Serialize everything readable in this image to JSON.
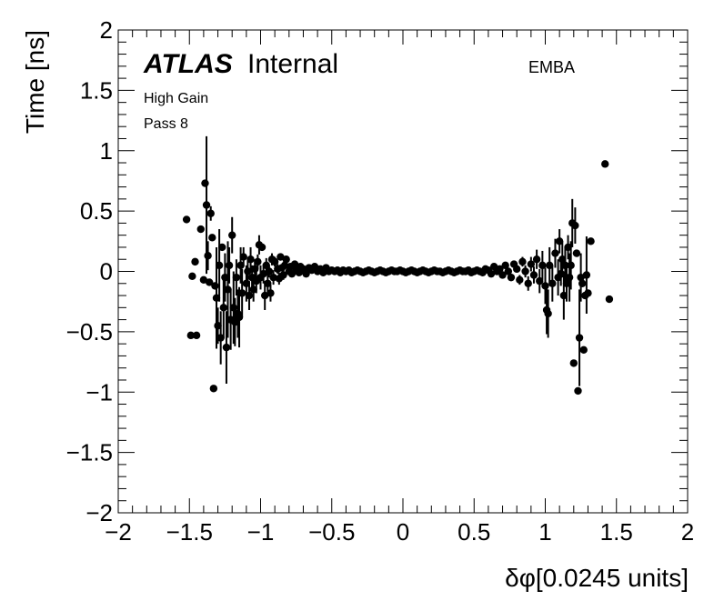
{
  "chart_data": {
    "type": "scatter",
    "xlabel": "δφ[0.0245 units]",
    "ylabel": "Time [ns]",
    "xlim": [
      -2,
      2
    ],
    "ylim": [
      -2,
      2
    ],
    "x_ticks": [
      -2,
      -1.5,
      -1,
      -0.5,
      0,
      0.5,
      1,
      1.5,
      2
    ],
    "y_ticks": [
      -2,
      -1.5,
      -1,
      -0.5,
      0,
      0.5,
      1,
      1.5,
      2
    ],
    "x_tick_labels": [
      "−2",
      "−1.5",
      "−1",
      "−0.5",
      "0",
      "0.5",
      "1",
      "1.5",
      "2"
    ],
    "y_tick_labels": [
      "−2",
      "−1.5",
      "−1",
      "−0.5",
      "0",
      "0.5",
      "1",
      "1.5",
      "2"
    ],
    "grid": false,
    "marker_color": "#000000",
    "annotations": {
      "experiment": "ATLAS",
      "status": "Internal",
      "gain": "High Gain",
      "pass": "Pass 8",
      "region": "EMBA"
    },
    "points": [
      {
        "x": -1.52,
        "y": 0.43,
        "err": 0.0
      },
      {
        "x": -1.49,
        "y": -0.53,
        "err": 0.0
      },
      {
        "x": -1.48,
        "y": -0.04,
        "err": 0.0
      },
      {
        "x": -1.46,
        "y": 0.08,
        "err": 0.0
      },
      {
        "x": -1.45,
        "y": -0.53,
        "err": 0.0
      },
      {
        "x": -1.42,
        "y": 0.35,
        "err": 0.0
      },
      {
        "x": -1.4,
        "y": -0.07,
        "err": 0.0
      },
      {
        "x": -1.39,
        "y": 0.73,
        "err": 0.0
      },
      {
        "x": -1.38,
        "y": 0.55,
        "err": 0.57
      },
      {
        "x": -1.37,
        "y": 0.13,
        "err": 0.12
      },
      {
        "x": -1.36,
        "y": -0.09,
        "err": 0.0
      },
      {
        "x": -1.35,
        "y": 0.48,
        "err": 0.06
      },
      {
        "x": -1.34,
        "y": 0.28,
        "err": 0.0
      },
      {
        "x": -1.33,
        "y": -0.97,
        "err": 0.0
      },
      {
        "x": -1.32,
        "y": -0.12,
        "err": 0.0
      },
      {
        "x": -1.31,
        "y": -0.22,
        "err": 0.42
      },
      {
        "x": -1.3,
        "y": -0.45,
        "err": 0.15
      },
      {
        "x": -1.29,
        "y": 0.05,
        "err": 0.3
      },
      {
        "x": -1.28,
        "y": -0.55,
        "err": 0.22
      },
      {
        "x": -1.27,
        "y": 0.2,
        "err": 0.0
      },
      {
        "x": -1.26,
        "y": -0.3,
        "err": 0.25
      },
      {
        "x": -1.25,
        "y": -0.05,
        "err": 0.2
      },
      {
        "x": -1.24,
        "y": -0.63,
        "err": 0.3
      },
      {
        "x": -1.23,
        "y": -0.15,
        "err": 0.4
      },
      {
        "x": -1.22,
        "y": 0.05,
        "err": 0.15
      },
      {
        "x": -1.21,
        "y": -0.4,
        "err": 0.25
      },
      {
        "x": -1.2,
        "y": 0.3,
        "err": 0.15
      },
      {
        "x": -1.19,
        "y": -0.3,
        "err": 0.3
      },
      {
        "x": -1.18,
        "y": -0.42,
        "err": 0.2
      },
      {
        "x": -1.17,
        "y": -0.05,
        "err": 0.15
      },
      {
        "x": -1.16,
        "y": -0.35,
        "err": 0.2
      },
      {
        "x": -1.15,
        "y": -0.38,
        "err": 0.25
      },
      {
        "x": -1.14,
        "y": 0.05,
        "err": 0.15
      },
      {
        "x": -1.13,
        "y": -0.18,
        "err": 0.2
      },
      {
        "x": -1.12,
        "y": 0.12,
        "err": 0.08
      },
      {
        "x": -1.1,
        "y": -0.1,
        "err": 0.15
      },
      {
        "x": -1.09,
        "y": 0.0,
        "err": 0.1
      },
      {
        "x": -1.08,
        "y": -0.2,
        "err": 0.12
      },
      {
        "x": -1.07,
        "y": 0.1,
        "err": 0.1
      },
      {
        "x": -1.06,
        "y": -0.05,
        "err": 0.1
      },
      {
        "x": -1.05,
        "y": -0.15,
        "err": 0.1
      },
      {
        "x": -1.04,
        "y": 0.02,
        "err": 0.08
      },
      {
        "x": -1.03,
        "y": -0.08,
        "err": 0.1
      },
      {
        "x": -1.02,
        "y": 0.08,
        "err": 0.06
      },
      {
        "x": -1.01,
        "y": 0.22,
        "err": 0.08
      },
      {
        "x": -1.0,
        "y": -0.05,
        "err": 0.1
      },
      {
        "x": -0.99,
        "y": 0.2,
        "err": 0.0
      },
      {
        "x": -0.98,
        "y": -0.02,
        "err": 0.08
      },
      {
        "x": -0.97,
        "y": -0.2,
        "err": 0.12
      },
      {
        "x": -0.96,
        "y": 0.05,
        "err": 0.06
      },
      {
        "x": -0.95,
        "y": -0.1,
        "err": 0.08
      },
      {
        "x": -0.94,
        "y": 0.0,
        "err": 0.05
      },
      {
        "x": -0.93,
        "y": -0.18,
        "err": 0.07
      },
      {
        "x": -0.92,
        "y": 0.1,
        "err": 0.05
      },
      {
        "x": -0.91,
        "y": -0.05,
        "err": 0.06
      },
      {
        "x": -0.9,
        "y": 0.08,
        "err": 0.04
      },
      {
        "x": -0.88,
        "y": 0.02,
        "err": 0.04
      },
      {
        "x": -0.87,
        "y": -0.06,
        "err": 0.05
      },
      {
        "x": -0.86,
        "y": 0.12,
        "err": 0.03
      },
      {
        "x": -0.85,
        "y": 0.03,
        "err": 0.03
      },
      {
        "x": -0.84,
        "y": -0.03,
        "err": 0.04
      },
      {
        "x": -0.83,
        "y": 0.05,
        "err": 0.03
      },
      {
        "x": -0.82,
        "y": 0.1,
        "err": 0.03
      },
      {
        "x": -0.8,
        "y": 0.0,
        "err": 0.03
      },
      {
        "x": -0.79,
        "y": 0.04,
        "err": 0.02
      },
      {
        "x": -0.78,
        "y": -0.02,
        "err": 0.02
      },
      {
        "x": -0.76,
        "y": 0.06,
        "err": 0.02
      },
      {
        "x": -0.75,
        "y": 0.02,
        "err": 0.02
      },
      {
        "x": -0.73,
        "y": -0.01,
        "err": 0.02
      },
      {
        "x": -0.72,
        "y": 0.04,
        "err": 0.02
      },
      {
        "x": -0.7,
        "y": 0.02,
        "err": 0.01
      },
      {
        "x": -0.68,
        "y": -0.02,
        "err": 0.01
      },
      {
        "x": -0.66,
        "y": 0.03,
        "err": 0.01
      },
      {
        "x": -0.64,
        "y": 0.01,
        "err": 0.01
      },
      {
        "x": -0.62,
        "y": 0.04,
        "err": 0.01
      },
      {
        "x": -0.6,
        "y": 0.0,
        "err": 0.01
      },
      {
        "x": -0.58,
        "y": 0.02,
        "err": 0.01
      },
      {
        "x": -0.56,
        "y": -0.01,
        "err": 0.01
      },
      {
        "x": -0.54,
        "y": 0.03,
        "err": 0.01
      },
      {
        "x": -0.52,
        "y": 0.0,
        "err": 0.01
      },
      {
        "x": -0.5,
        "y": 0.01,
        "err": 0.01
      },
      {
        "x": -0.48,
        "y": 0.0,
        "err": 0.0
      },
      {
        "x": -0.46,
        "y": 0.01,
        "err": 0.0
      },
      {
        "x": -0.44,
        "y": -0.01,
        "err": 0.0
      },
      {
        "x": -0.42,
        "y": 0.01,
        "err": 0.0
      },
      {
        "x": -0.4,
        "y": 0.0,
        "err": 0.0
      },
      {
        "x": -0.38,
        "y": 0.01,
        "err": 0.0
      },
      {
        "x": -0.36,
        "y": -0.01,
        "err": 0.0
      },
      {
        "x": -0.34,
        "y": 0.0,
        "err": 0.0
      },
      {
        "x": -0.32,
        "y": 0.01,
        "err": 0.0
      },
      {
        "x": -0.3,
        "y": 0.0,
        "err": 0.0
      },
      {
        "x": -0.28,
        "y": -0.01,
        "err": 0.0
      },
      {
        "x": -0.26,
        "y": 0.0,
        "err": 0.0
      },
      {
        "x": -0.24,
        "y": 0.01,
        "err": 0.0
      },
      {
        "x": -0.22,
        "y": 0.0,
        "err": 0.0
      },
      {
        "x": -0.2,
        "y": -0.01,
        "err": 0.0
      },
      {
        "x": -0.18,
        "y": 0.0,
        "err": 0.0
      },
      {
        "x": -0.16,
        "y": 0.01,
        "err": 0.0
      },
      {
        "x": -0.14,
        "y": 0.0,
        "err": 0.0
      },
      {
        "x": -0.12,
        "y": -0.01,
        "err": 0.0
      },
      {
        "x": -0.1,
        "y": 0.0,
        "err": 0.0
      },
      {
        "x": -0.08,
        "y": 0.01,
        "err": 0.0
      },
      {
        "x": -0.06,
        "y": 0.0,
        "err": 0.0
      },
      {
        "x": -0.04,
        "y": 0.0,
        "err": 0.0
      },
      {
        "x": -0.02,
        "y": 0.01,
        "err": 0.0
      },
      {
        "x": 0.0,
        "y": 0.0,
        "err": 0.0
      },
      {
        "x": 0.02,
        "y": -0.01,
        "err": 0.0
      },
      {
        "x": 0.04,
        "y": 0.0,
        "err": 0.0
      },
      {
        "x": 0.06,
        "y": 0.01,
        "err": 0.0
      },
      {
        "x": 0.08,
        "y": 0.0,
        "err": 0.0
      },
      {
        "x": 0.1,
        "y": -0.01,
        "err": 0.0
      },
      {
        "x": 0.12,
        "y": 0.0,
        "err": 0.0
      },
      {
        "x": 0.14,
        "y": 0.01,
        "err": 0.0
      },
      {
        "x": 0.16,
        "y": 0.0,
        "err": 0.0
      },
      {
        "x": 0.18,
        "y": -0.01,
        "err": 0.0
      },
      {
        "x": 0.2,
        "y": 0.0,
        "err": 0.0
      },
      {
        "x": 0.22,
        "y": 0.01,
        "err": 0.0
      },
      {
        "x": 0.24,
        "y": 0.0,
        "err": 0.0
      },
      {
        "x": 0.26,
        "y": 0.0,
        "err": 0.0
      },
      {
        "x": 0.28,
        "y": -0.01,
        "err": 0.0
      },
      {
        "x": 0.3,
        "y": 0.0,
        "err": 0.0
      },
      {
        "x": 0.32,
        "y": 0.01,
        "err": 0.0
      },
      {
        "x": 0.34,
        "y": 0.0,
        "err": 0.0
      },
      {
        "x": 0.36,
        "y": -0.01,
        "err": 0.0
      },
      {
        "x": 0.38,
        "y": 0.0,
        "err": 0.0
      },
      {
        "x": 0.4,
        "y": 0.01,
        "err": 0.0
      },
      {
        "x": 0.42,
        "y": 0.0,
        "err": 0.0
      },
      {
        "x": 0.44,
        "y": 0.0,
        "err": 0.0
      },
      {
        "x": 0.46,
        "y": 0.01,
        "err": 0.0
      },
      {
        "x": 0.48,
        "y": -0.01,
        "err": 0.0
      },
      {
        "x": 0.5,
        "y": 0.0,
        "err": 0.01
      },
      {
        "x": 0.52,
        "y": 0.01,
        "err": 0.01
      },
      {
        "x": 0.54,
        "y": 0.0,
        "err": 0.01
      },
      {
        "x": 0.56,
        "y": -0.01,
        "err": 0.01
      },
      {
        "x": 0.58,
        "y": 0.02,
        "err": 0.01
      },
      {
        "x": 0.6,
        "y": 0.01,
        "err": 0.01
      },
      {
        "x": 0.62,
        "y": -0.02,
        "err": 0.01
      },
      {
        "x": 0.64,
        "y": 0.04,
        "err": 0.01
      },
      {
        "x": 0.66,
        "y": 0.0,
        "err": 0.01
      },
      {
        "x": 0.68,
        "y": 0.02,
        "err": 0.02
      },
      {
        "x": 0.7,
        "y": -0.03,
        "err": 0.02
      },
      {
        "x": 0.72,
        "y": 0.05,
        "err": 0.02
      },
      {
        "x": 0.74,
        "y": 0.0,
        "err": 0.02
      },
      {
        "x": 0.76,
        "y": -0.05,
        "err": 0.03
      },
      {
        "x": 0.78,
        "y": 0.06,
        "err": 0.03
      },
      {
        "x": 0.8,
        "y": 0.02,
        "err": 0.03
      },
      {
        "x": 0.82,
        "y": -0.07,
        "err": 0.04
      },
      {
        "x": 0.84,
        "y": 0.08,
        "err": 0.04
      },
      {
        "x": 0.86,
        "y": 0.0,
        "err": 0.05
      },
      {
        "x": 0.88,
        "y": -0.1,
        "err": 0.06
      },
      {
        "x": 0.9,
        "y": 0.06,
        "err": 0.06
      },
      {
        "x": 0.92,
        "y": -0.03,
        "err": 0.07
      },
      {
        "x": 0.94,
        "y": 0.1,
        "err": 0.08
      },
      {
        "x": 0.96,
        "y": -0.08,
        "err": 0.1
      },
      {
        "x": 0.98,
        "y": 0.05,
        "err": 0.12
      },
      {
        "x": 1.0,
        "y": -0.12,
        "err": 0.15
      },
      {
        "x": 1.01,
        "y": -0.32,
        "err": 0.2
      },
      {
        "x": 1.02,
        "y": -0.35,
        "err": 0.2
      },
      {
        "x": 1.03,
        "y": 0.05,
        "err": 0.15
      },
      {
        "x": 1.05,
        "y": -0.1,
        "err": 0.15
      },
      {
        "x": 1.07,
        "y": 0.15,
        "err": 0.12
      },
      {
        "x": 1.09,
        "y": -0.05,
        "err": 0.15
      },
      {
        "x": 1.1,
        "y": 0.25,
        "err": 0.1
      },
      {
        "x": 1.11,
        "y": -0.02,
        "err": 0.1
      },
      {
        "x": 1.12,
        "y": 0.1,
        "err": 0.15
      },
      {
        "x": 1.13,
        "y": -0.2,
        "err": 0.2
      },
      {
        "x": 1.14,
        "y": 0.05,
        "err": 0.15
      },
      {
        "x": 1.15,
        "y": -0.1,
        "err": 0.15
      },
      {
        "x": 1.16,
        "y": 0.2,
        "err": 0.1
      },
      {
        "x": 1.17,
        "y": -0.05,
        "err": 0.2
      },
      {
        "x": 1.18,
        "y": 0.05,
        "err": 0.2
      },
      {
        "x": 1.19,
        "y": 0.4,
        "err": 0.2
      },
      {
        "x": 1.2,
        "y": -0.76,
        "err": 0.0
      },
      {
        "x": 1.21,
        "y": 0.38,
        "err": 0.15
      },
      {
        "x": 1.22,
        "y": 0.15,
        "err": 0.0
      },
      {
        "x": 1.23,
        "y": -0.99,
        "err": 0.0
      },
      {
        "x": 1.24,
        "y": -0.55,
        "err": 0.4
      },
      {
        "x": 1.25,
        "y": -0.05,
        "err": 0.2
      },
      {
        "x": 1.26,
        "y": -0.1,
        "err": 0.0
      },
      {
        "x": 1.27,
        "y": -0.65,
        "err": 0.0
      },
      {
        "x": 1.28,
        "y": -0.2,
        "err": 0.0
      },
      {
        "x": 1.29,
        "y": -0.03,
        "err": 0.32
      },
      {
        "x": 1.3,
        "y": -0.18,
        "err": 0.0
      },
      {
        "x": 1.32,
        "y": 0.25,
        "err": 0.0
      },
      {
        "x": 1.42,
        "y": 0.89,
        "err": 0.0
      },
      {
        "x": 1.45,
        "y": -0.23,
        "err": 0.0
      }
    ]
  }
}
